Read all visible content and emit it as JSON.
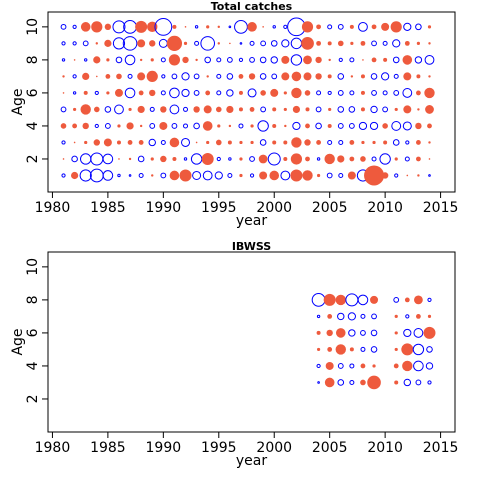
{
  "chart_data": [
    {
      "type": "bubble",
      "title": "Total catches",
      "xlabel": "year",
      "ylabel": "Age",
      "positive_color": "#ee5a3d",
      "negative_color": "#0000ff",
      "xlim": [
        1979.6,
        2016.3
      ],
      "ylim": [
        0,
        10.9
      ],
      "xticks": [
        1980,
        1985,
        1990,
        1995,
        2000,
        2005,
        2010,
        2015
      ],
      "yticks": [
        2,
        4,
        6,
        8,
        10
      ],
      "x": [
        1981,
        1982,
        1983,
        1984,
        1985,
        1986,
        1987,
        1988,
        1989,
        1990,
        1991,
        1992,
        1993,
        1994,
        1995,
        1996,
        1997,
        1998,
        1999,
        2000,
        2001,
        2002,
        2003,
        2004,
        2005,
        2006,
        2007,
        2008,
        2009,
        2010,
        2011,
        2012,
        2013,
        2014
      ],
      "y": [
        10,
        9,
        8,
        7,
        6,
        5,
        4,
        3,
        2,
        1
      ],
      "values": [
        [
          -0.6,
          -0.4,
          1.2,
          1.4,
          0.8,
          -1.5,
          -1.6,
          1.5,
          1.3,
          -2.1,
          0.5,
          0.2,
          -0.3,
          0.4,
          0.3,
          -0.2,
          -1.6,
          1.2,
          0.2,
          -0.3,
          -0.4,
          -2.2,
          1.4,
          0.6,
          -0.5,
          -0.6,
          0.5,
          -1.1,
          0.6,
          1.0,
          1.4,
          -0.9,
          -0.7,
          0.4
        ],
        [
          -0.4,
          -0.4,
          -0.6,
          0.3,
          0.9,
          -1.4,
          -1.7,
          1.0,
          0.8,
          -1.0,
          1.9,
          0.4,
          -0.5,
          -1.7,
          0.3,
          0.2,
          -0.2,
          -0.5,
          -0.6,
          -0.7,
          -0.9,
          -1.3,
          1.6,
          0.6,
          0.5,
          0.7,
          0.4,
          0.6,
          -0.6,
          -0.5,
          -0.9,
          0.6,
          0.4,
          0.3
        ],
        [
          -0.3,
          0.2,
          -0.3,
          0.9,
          0.4,
          -0.7,
          -1.2,
          0.3,
          0.4,
          -0.5,
          1.4,
          0.8,
          0.3,
          -0.7,
          -0.5,
          -0.6,
          -0.4,
          -0.6,
          -0.7,
          -0.8,
          1.0,
          -1.3,
          1.1,
          0.8,
          0.3,
          -0.4,
          -0.5,
          0.2,
          0.6,
          0.5,
          -0.7,
          1.2,
          -0.8,
          -1.1
        ],
        [
          0.3,
          -0.4,
          0.9,
          0.2,
          0.6,
          0.7,
          -0.5,
          1.0,
          1.4,
          -0.4,
          -0.6,
          -0.9,
          -0.6,
          0.3,
          -0.5,
          -0.7,
          0.6,
          0.8,
          -0.7,
          -0.6,
          1.0,
          1.2,
          1.0,
          0.8,
          0.5,
          -0.7,
          0.3,
          0.5,
          -0.7,
          -0.9,
          -0.5,
          1.0,
          0.5,
          0.3
        ],
        [
          0.2,
          -0.3,
          0.5,
          -0.4,
          0.4,
          1.0,
          -1.2,
          0.6,
          0.8,
          -0.5,
          -1.2,
          -0.9,
          -0.6,
          0.6,
          -0.5,
          -0.8,
          0.5,
          -1.0,
          0.7,
          1.0,
          0.4,
          1.3,
          0.7,
          -0.5,
          -0.4,
          -0.6,
          -0.5,
          0.5,
          -0.6,
          -0.5,
          -0.6,
          -1.1,
          0.6,
          1.3
        ],
        [
          -0.6,
          0.4,
          1.3,
          0.7,
          -0.7,
          -1.1,
          0.4,
          0.9,
          -0.5,
          0.8,
          -1.1,
          -0.5,
          0.8,
          1.0,
          0.7,
          0.9,
          0.5,
          0.6,
          -0.6,
          0.5,
          0.4,
          0.9,
          0.5,
          -0.6,
          0.4,
          -0.7,
          -0.7,
          0.5,
          -0.8,
          -0.6,
          0.4,
          1.0,
          0.3,
          1.1
        ],
        [
          0.7,
          0.6,
          0.8,
          -0.4,
          -0.6,
          0.4,
          0.9,
          0.3,
          -0.6,
          1.0,
          -0.6,
          -0.5,
          -0.7,
          1.2,
          0.4,
          0.3,
          -0.5,
          0.4,
          -1.3,
          0.5,
          0.3,
          -0.9,
          0.6,
          -0.7,
          0.5,
          -0.6,
          -0.6,
          -0.9,
          -0.9,
          0.7,
          -1.1,
          -1.0,
          0.8,
          0.6
        ],
        [
          -0.4,
          0.2,
          0.4,
          0.8,
          1.0,
          0.5,
          0.6,
          0.6,
          -0.8,
          -0.5,
          1.2,
          -1.0,
          0.2,
          0.4,
          0.7,
          0.5,
          0.4,
          0.4,
          -0.7,
          0.5,
          0.5,
          1.3,
          0.8,
          0.6,
          -0.5,
          -0.5,
          0.6,
          0.4,
          0.4,
          0.5,
          -0.7,
          -0.4,
          0.6,
          0.3
        ],
        [
          0.2,
          -0.7,
          -1.3,
          -1.5,
          -1.2,
          0.2,
          0.3,
          -0.7,
          0.4,
          0.8,
          0.5,
          -0.3,
          -1.3,
          1.5,
          -0.4,
          -0.3,
          0.4,
          -0.6,
          1.1,
          -1.5,
          0.5,
          1.4,
          0.6,
          -0.3,
          1.3,
          0.9,
          0.6,
          0.7,
          -0.5,
          -1.3,
          0.4,
          -0.5,
          0.6,
          0.2
        ],
        [
          -0.4,
          0.9,
          -1.4,
          -1.6,
          -1.2,
          -0.3,
          -0.2,
          -0.5,
          0.3,
          -0.6,
          1.2,
          1.5,
          -1.0,
          -1.1,
          -0.9,
          -0.5,
          0.4,
          -0.4,
          1.0,
          1.2,
          -1.1,
          1.5,
          1.3,
          0.4,
          -0.6,
          -0.5,
          1.0,
          -1.4,
          2.5,
          0.8,
          -0.4,
          0.2,
          0.3,
          -0.2
        ]
      ]
    },
    {
      "type": "bubble",
      "title": "IBWSS",
      "xlabel": "year",
      "ylabel": "Age",
      "positive_color": "#ee5a3d",
      "negative_color": "#0000ff",
      "xlim": [
        1979.6,
        2016.3
      ],
      "ylim": [
        0,
        10.9
      ],
      "xticks": [
        1980,
        1985,
        1990,
        1995,
        2000,
        2005,
        2010,
        2015
      ],
      "yticks": [
        2,
        4,
        6,
        8,
        10
      ],
      "x": [
        2004,
        2005,
        2006,
        2007,
        2008,
        2009,
        2010,
        2011,
        2012,
        2013,
        2014
      ],
      "y": [
        8,
        7,
        6,
        5,
        4,
        3
      ],
      "values": [
        [
          -1.6,
          1.5,
          1.3,
          -1.5,
          -1.2,
          1.0,
          null,
          -0.6,
          0.6,
          1.1,
          -0.4
        ],
        [
          -0.3,
          0.6,
          -0.8,
          -0.9,
          -0.5,
          -0.6,
          null,
          0.4,
          -0.4,
          0.6,
          0.4
        ],
        [
          0.5,
          0.8,
          1.2,
          -0.8,
          -0.6,
          -0.7,
          null,
          0.4,
          -0.9,
          -1.1,
          1.5
        ],
        [
          0.4,
          0.6,
          1.3,
          0.5,
          -0.5,
          -0.7,
          null,
          0.4,
          1.5,
          -1.3,
          -0.7
        ],
        [
          -0.4,
          1.0,
          -0.6,
          -0.5,
          0.6,
          0.4,
          null,
          0.6,
          1.3,
          -1.2,
          -0.8
        ],
        [
          -0.2,
          1.2,
          -0.7,
          -0.5,
          0.7,
          1.7,
          null,
          0.5,
          -0.8,
          -0.6,
          -0.4
        ]
      ]
    }
  ]
}
